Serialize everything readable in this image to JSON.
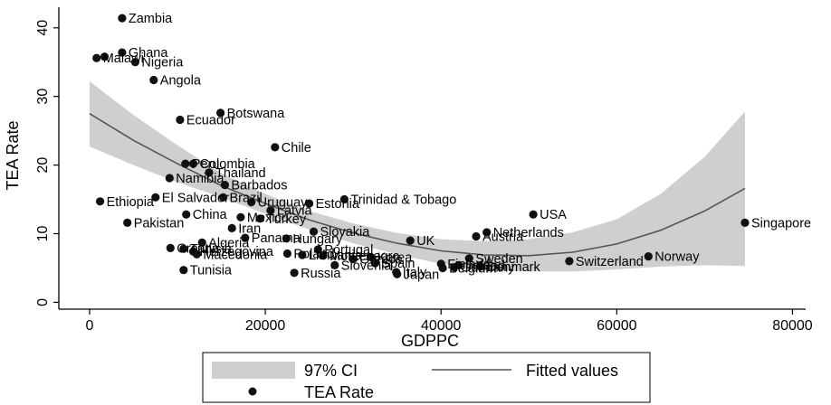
{
  "chart_data": {
    "type": "scatter",
    "xlabel": "GDPPC",
    "ylabel": "TEA Rate",
    "xlim": [
      -3500,
      81500
    ],
    "ylim": [
      -1,
      43
    ],
    "xticks": [
      0,
      20000,
      40000,
      60000,
      80000
    ],
    "yticks": [
      0,
      10,
      20,
      30,
      40
    ],
    "grid": false,
    "legend_position": "bottom",
    "colors": {
      "points": "#111111",
      "ci_band": "#cfcfcf",
      "fit_line": "#555555"
    },
    "legend": {
      "ci_label": "97% CI",
      "fit_label": "Fitted values",
      "points_label": "TEA Rate"
    },
    "points": [
      {
        "label": "Zambia",
        "x": 3700,
        "y": 41.4
      },
      {
        "label": "Ghana",
        "x": 3700,
        "y": 36.4
      },
      {
        "label": "Malawi",
        "x": 800,
        "y": 35.6
      },
      {
        "label": "",
        "x": 1700,
        "y": 35.8
      },
      {
        "label": "Nigeria",
        "x": 5200,
        "y": 35.0
      },
      {
        "label": "Angola",
        "x": 7300,
        "y": 32.4
      },
      {
        "label": "Botswana",
        "x": 14900,
        "y": 27.6
      },
      {
        "label": "Ecuador",
        "x": 10300,
        "y": 26.6
      },
      {
        "label": "Chile",
        "x": 21100,
        "y": 22.6
      },
      {
        "label": "Peru",
        "x": 10900,
        "y": 20.2
      },
      {
        "label": "Colombia",
        "x": 11800,
        "y": 20.2
      },
      {
        "label": "Thailand",
        "x": 13600,
        "y": 18.9
      },
      {
        "label": "Namibia",
        "x": 9100,
        "y": 18.1
      },
      {
        "label": "Barbados",
        "x": 15400,
        "y": 17.1
      },
      {
        "label": "Ethiopia",
        "x": 1200,
        "y": 14.7
      },
      {
        "label": "El Salvador",
        "x": 7500,
        "y": 15.3
      },
      {
        "label": "Brazil",
        "x": 15200,
        "y": 15.3
      },
      {
        "label": "Uruguay",
        "x": 18400,
        "y": 14.6
      },
      {
        "label": "Estonia",
        "x": 25000,
        "y": 14.4
      },
      {
        "label": "Trinidad & Tobago",
        "x": 29000,
        "y": 15.0
      },
      {
        "label": "China",
        "x": 11000,
        "y": 12.8
      },
      {
        "label": "Latvia",
        "x": 20600,
        "y": 13.4
      },
      {
        "label": "Mexico",
        "x": 17200,
        "y": 12.4
      },
      {
        "label": "Turkey",
        "x": 19400,
        "y": 12.2
      },
      {
        "label": "USA",
        "x": 50500,
        "y": 12.8
      },
      {
        "label": "Pakistan",
        "x": 4300,
        "y": 11.6
      },
      {
        "label": "Singapore",
        "x": 74600,
        "y": 11.6
      },
      {
        "label": "Iran",
        "x": 16200,
        "y": 10.8
      },
      {
        "label": "Slovakia",
        "x": 25500,
        "y": 10.3
      },
      {
        "label": "Netherlands",
        "x": 45200,
        "y": 10.2
      },
      {
        "label": "Austria",
        "x": 44000,
        "y": 9.6
      },
      {
        "label": "Panama",
        "x": 17700,
        "y": 9.4
      },
      {
        "label": "Hungary",
        "x": 22400,
        "y": 9.3
      },
      {
        "label": "UK",
        "x": 36500,
        "y": 9.0
      },
      {
        "label": "Algeria",
        "x": 12800,
        "y": 8.7
      },
      {
        "label": "Croatia",
        "x": 9200,
        "y": 7.9
      },
      {
        "label": "Tunisia",
        "x": 10700,
        "y": 7.8
      },
      {
        "label": "Herzegovina",
        "x": 11800,
        "y": 7.4
      },
      {
        "label": "Portugal",
        "x": 26000,
        "y": 7.7
      },
      {
        "label": "Poland",
        "x": 22500,
        "y": 7.1
      },
      {
        "label": "Macedonia",
        "x": 12200,
        "y": 7.0
      },
      {
        "label": "Lithuania",
        "x": 24200,
        "y": 6.9
      },
      {
        "label": "Montenegro",
        "x": 26600,
        "y": 6.8
      },
      {
        "label": "Korea",
        "x": 32000,
        "y": 6.6
      },
      {
        "label": "Greece",
        "x": 30000,
        "y": 6.3
      },
      {
        "label": "Sweden",
        "x": 43200,
        "y": 6.4
      },
      {
        "label": "Norway",
        "x": 63600,
        "y": 6.7
      },
      {
        "label": "Switzerland",
        "x": 54600,
        "y": 6.0
      },
      {
        "label": "Finland",
        "x": 40000,
        "y": 5.6
      },
      {
        "label": "Ireland",
        "x": 42000,
        "y": 5.4
      },
      {
        "label": "Denmark",
        "x": 44500,
        "y": 5.2
      },
      {
        "label": "Germany",
        "x": 41500,
        "y": 5.1
      },
      {
        "label": "Belgium",
        "x": 40200,
        "y": 5.0
      },
      {
        "label": "Spain",
        "x": 32500,
        "y": 5.7
      },
      {
        "label": "Slovenia",
        "x": 27900,
        "y": 5.4
      },
      {
        "label": "Italy",
        "x": 34900,
        "y": 4.4
      },
      {
        "label": "Japan",
        "x": 35000,
        "y": 4.1
      },
      {
        "label": "Tunisia",
        "x": 10700,
        "y": 4.7
      },
      {
        "label": "Russia",
        "x": 23300,
        "y": 4.3
      }
    ],
    "fitted": {
      "x": [
        0,
        5000,
        10000,
        15000,
        20000,
        25000,
        30000,
        35000,
        40000,
        45000,
        50000,
        55000,
        60000,
        65000,
        70000,
        74600
      ],
      "y": [
        27.5,
        23.6,
        20.2,
        17.0,
        14.4,
        12.0,
        10.1,
        8.6,
        7.5,
        6.9,
        6.8,
        7.3,
        8.5,
        10.5,
        13.3,
        16.6
      ],
      "ci_lower": [
        22.7,
        20.0,
        17.5,
        15.3,
        12.9,
        10.6,
        8.6,
        7.0,
        5.6,
        4.8,
        4.5,
        4.5,
        4.8,
        5.2,
        5.4,
        5.3
      ],
      "ci_upper": [
        32.2,
        27.3,
        22.9,
        18.8,
        15.8,
        13.3,
        11.5,
        10.1,
        9.2,
        8.9,
        9.2,
        10.2,
        12.1,
        15.8,
        21.2,
        27.8
      ]
    }
  }
}
